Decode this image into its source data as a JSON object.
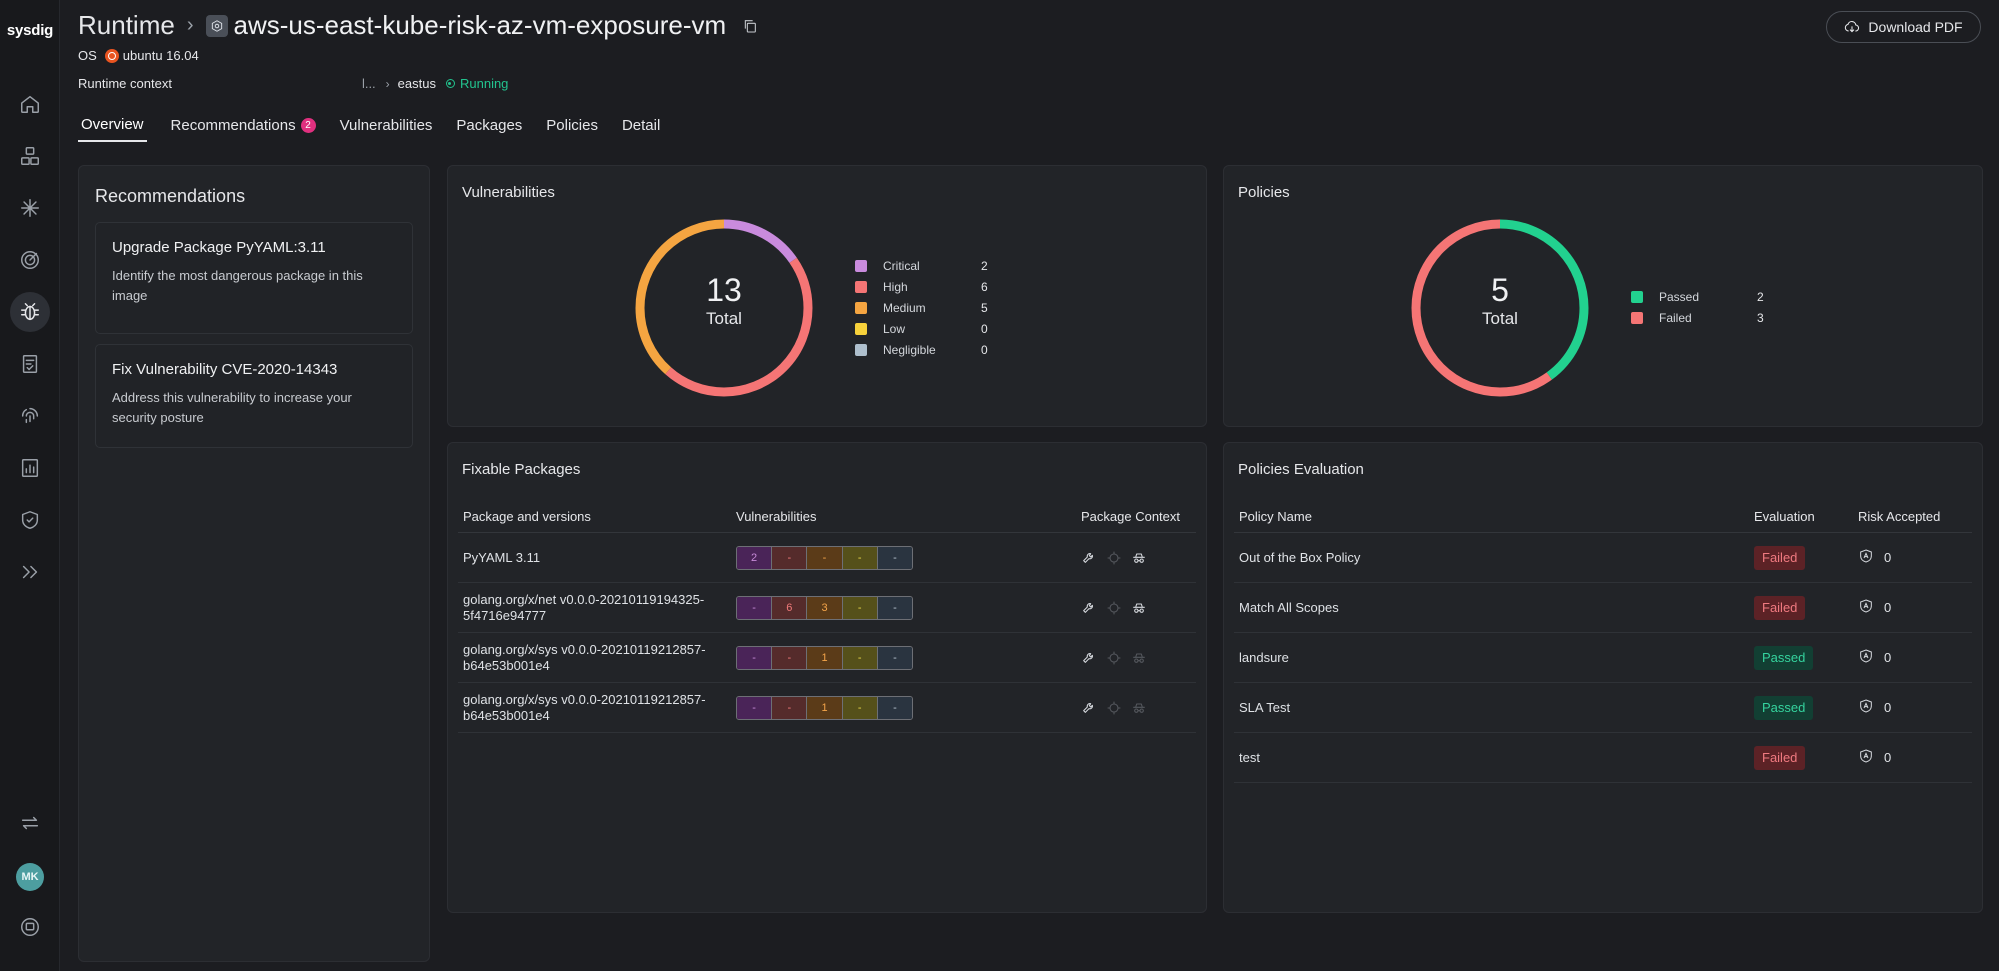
{
  "app": {
    "logo": "sysdig"
  },
  "sidebar": {
    "items": [
      {
        "name": "home-icon"
      },
      {
        "name": "inventory-icon"
      },
      {
        "name": "events-icon"
      },
      {
        "name": "risk-icon"
      },
      {
        "name": "vulnerabilities-icon"
      },
      {
        "name": "compliance-icon"
      },
      {
        "name": "identity-icon"
      },
      {
        "name": "reports-icon"
      },
      {
        "name": "policies-icon"
      },
      {
        "name": "expand-icon"
      }
    ],
    "avatar": "MK"
  },
  "header": {
    "breadcrumb_root": "Runtime",
    "resource_name": "aws-us-east-kube-risk-az-vm-exposure-vm",
    "os_label": "OS",
    "os_value": "ubuntu 16.04",
    "runtime_context_label": "Runtime context",
    "runtime_context_truncated": "l...",
    "runtime_context_region": "eastus",
    "runtime_status": "Running",
    "download_label": "Download PDF"
  },
  "tabs": [
    {
      "label": "Overview",
      "active": true
    },
    {
      "label": "Recommendations",
      "badge": "2"
    },
    {
      "label": "Vulnerabilities"
    },
    {
      "label": "Packages"
    },
    {
      "label": "Policies"
    },
    {
      "label": "Detail"
    }
  ],
  "recommendations": {
    "title": "Recommendations",
    "items": [
      {
        "title": "Upgrade Package PyYAML:3.11",
        "description": "Identify the most dangerous package in this image"
      },
      {
        "title": "Fix Vulnerability CVE-2020-14343",
        "description": "Address this vulnerability to increase your security posture"
      }
    ]
  },
  "vulnerabilities": {
    "title": "Vulnerabilities",
    "total": "13",
    "total_label": "Total",
    "legend": [
      {
        "name": "Critical",
        "value": "2",
        "color": "#c98bdd"
      },
      {
        "name": "High",
        "value": "6",
        "color": "#f57575"
      },
      {
        "name": "Medium",
        "value": "5",
        "color": "#f5a541"
      },
      {
        "name": "Low",
        "value": "0",
        "color": "#f7d13b"
      },
      {
        "name": "Negligible",
        "value": "0",
        "color": "#aebfcd"
      }
    ]
  },
  "policies": {
    "title": "Policies",
    "total": "5",
    "total_label": "Total",
    "legend": [
      {
        "name": "Passed",
        "value": "2",
        "color": "#22d18f"
      },
      {
        "name": "Failed",
        "value": "3",
        "color": "#f57575"
      }
    ]
  },
  "fixable_packages": {
    "title": "Fixable Packages",
    "columns": [
      "Package and versions",
      "Vulnerabilities",
      "Package Context"
    ],
    "rows": [
      {
        "package": "PyYAML 3.11",
        "severity": [
          "2",
          "-",
          "-",
          "-",
          "-"
        ],
        "ctx": [
          true,
          false,
          true
        ]
      },
      {
        "package": "golang.org/x/net v0.0.0-20210119194325-5f4716e94777",
        "severity": [
          "-",
          "6",
          "3",
          "-",
          "-"
        ],
        "ctx": [
          true,
          false,
          true
        ]
      },
      {
        "package": "golang.org/x/sys v0.0.0-20210119212857-b64e53b001e4",
        "severity": [
          "-",
          "-",
          "1",
          "-",
          "-"
        ],
        "ctx": [
          true,
          false,
          false
        ]
      },
      {
        "package": "golang.org/x/sys v0.0.0-20210119212857-b64e53b001e4",
        "severity": [
          "-",
          "-",
          "1",
          "-",
          "-"
        ],
        "ctx": [
          true,
          false,
          false
        ]
      }
    ]
  },
  "policies_evaluation": {
    "title": "Policies Evaluation",
    "columns": [
      "Policy Name",
      "Evaluation",
      "Risk Accepted"
    ],
    "rows": [
      {
        "name": "Out of the Box Policy",
        "evaluation": "Failed",
        "risk": "0"
      },
      {
        "name": "Match All Scopes",
        "evaluation": "Failed",
        "risk": "0"
      },
      {
        "name": "landsure",
        "evaluation": "Passed",
        "risk": "0"
      },
      {
        "name": "SLA Test",
        "evaluation": "Passed",
        "risk": "0"
      },
      {
        "name": "test",
        "evaluation": "Failed",
        "risk": "0"
      }
    ]
  }
}
